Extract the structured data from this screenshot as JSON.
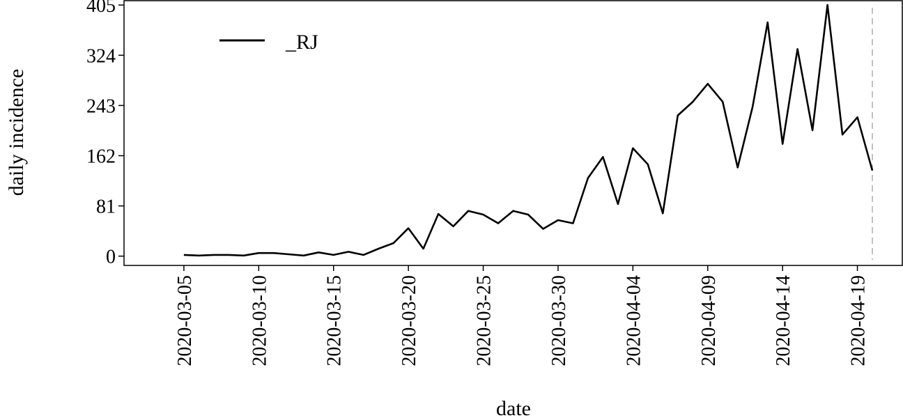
{
  "chart_data": {
    "type": "line",
    "title": "",
    "xlabel": "date",
    "ylabel": "daily incidence",
    "x_tick_labels": [
      "2020-03-05",
      "2020-03-10",
      "2020-03-15",
      "2020-03-20",
      "2020-03-25",
      "2020-03-30",
      "2020-04-04",
      "2020-04-09",
      "2020-04-14",
      "2020-04-19"
    ],
    "y_ticks": [
      0,
      81,
      162,
      243,
      324,
      405
    ],
    "ylim": [
      -15,
      412
    ],
    "xlim": [
      "2020-03-01",
      "2020-04-22"
    ],
    "grid": false,
    "legend_position": "top-left",
    "reference_line": {
      "date": "2020-04-20",
      "style": "dashed",
      "color": "#bbbbbb"
    },
    "series": [
      {
        "name": "_RJ",
        "color": "#000000",
        "x": [
          "2020-03-05",
          "2020-03-06",
          "2020-03-07",
          "2020-03-08",
          "2020-03-09",
          "2020-03-10",
          "2020-03-11",
          "2020-03-12",
          "2020-03-13",
          "2020-03-14",
          "2020-03-15",
          "2020-03-16",
          "2020-03-17",
          "2020-03-18",
          "2020-03-19",
          "2020-03-20",
          "2020-03-21",
          "2020-03-22",
          "2020-03-23",
          "2020-03-24",
          "2020-03-25",
          "2020-03-26",
          "2020-03-27",
          "2020-03-28",
          "2020-03-29",
          "2020-03-30",
          "2020-03-31",
          "2020-04-01",
          "2020-04-02",
          "2020-04-03",
          "2020-04-04",
          "2020-04-05",
          "2020-04-06",
          "2020-04-07",
          "2020-04-08",
          "2020-04-09",
          "2020-04-10",
          "2020-04-11",
          "2020-04-12",
          "2020-04-13",
          "2020-04-14",
          "2020-04-15",
          "2020-04-16",
          "2020-04-17",
          "2020-04-18",
          "2020-04-19",
          "2020-04-20"
        ],
        "values": [
          2,
          1,
          2,
          2,
          1,
          5,
          5,
          3,
          1,
          6,
          2,
          7,
          2,
          12,
          21,
          45,
          12,
          68,
          48,
          73,
          67,
          53,
          73,
          67,
          44,
          58,
          53,
          126,
          160,
          84,
          174,
          148,
          69,
          227,
          249,
          278,
          249,
          143,
          241,
          377,
          181,
          334,
          203,
          405,
          196,
          224,
          138
        ]
      }
    ]
  }
}
